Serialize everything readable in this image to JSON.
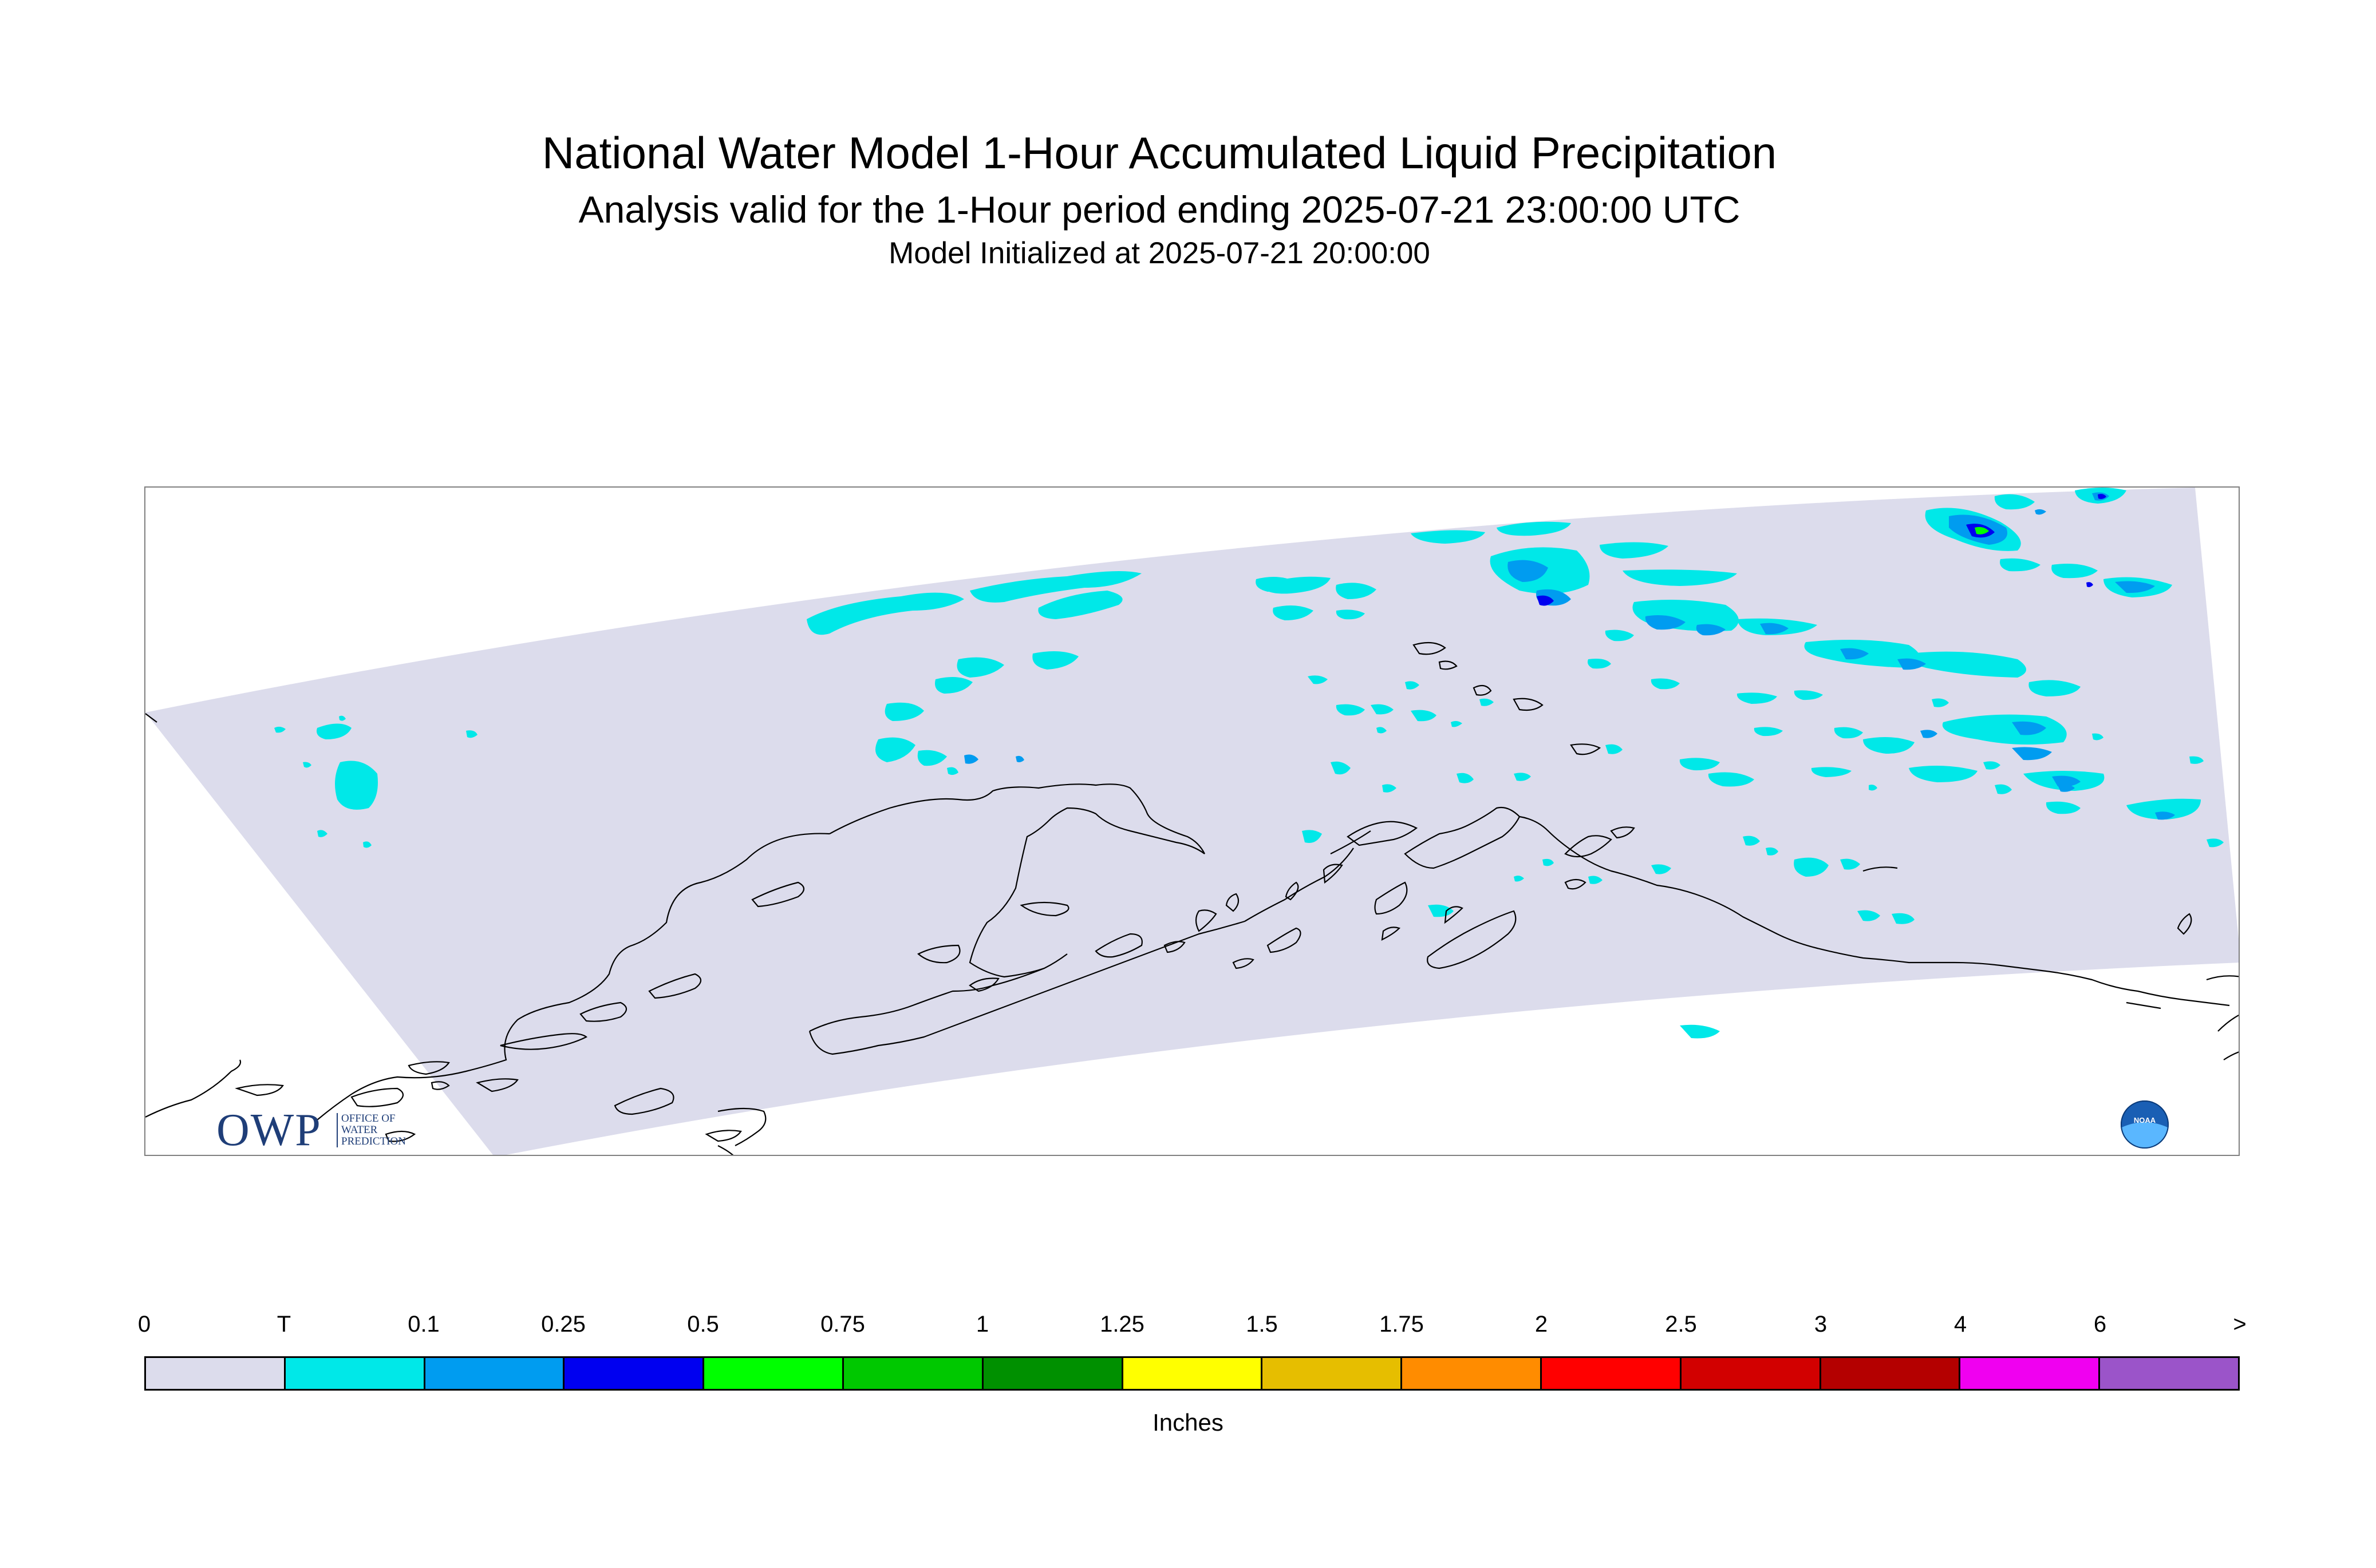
{
  "titles": {
    "main": "National Water Model 1-Hour Accumulated Liquid Precipitation",
    "sub": "Analysis valid for the 1-Hour period ending 2025-07-21 23:00:00 UTC",
    "init": "Model Initialized at 2025-07-21 20:00:00"
  },
  "logos": {
    "owp_letters": "OWP",
    "owp_sub": [
      "OFFICE OF",
      "WATER",
      "PREDICTION"
    ],
    "noaa": "NOAA"
  },
  "legend": {
    "units": "Inches",
    "tick_labels": [
      "0",
      "T",
      "0.1",
      "0.25",
      "0.5",
      "0.75",
      "1",
      "1.25",
      "1.5",
      "1.75",
      "2",
      "2.5",
      "3",
      "4",
      "6",
      ">"
    ],
    "colors": [
      "#dcdcec",
      "#00e8e8",
      "#009cf0",
      "#0000f0",
      "#00ff00",
      "#00c800",
      "#009000",
      "#ffff00",
      "#e6be00",
      "#ff8c00",
      "#ff0000",
      "#d20000",
      "#b40000",
      "#f000f0",
      "#9b54c9"
    ]
  },
  "map": {
    "region": "Alaska",
    "background_color": "#dcdcec",
    "coastline_color": "#000000"
  }
}
